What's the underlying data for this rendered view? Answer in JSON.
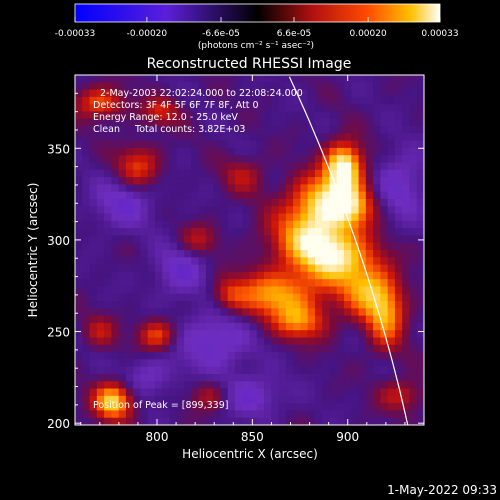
{
  "chart_data": {
    "type": "heatmap",
    "title": "Reconstructed RHESSI Image",
    "xlabel": "Heliocentric X (arcsec)",
    "ylabel": "Heliocentric Y (arcsec)",
    "xlim": [
      757,
      940
    ],
    "ylim": [
      199,
      390
    ],
    "xticks": [
      "800",
      "850",
      "900"
    ],
    "xtick_values": [
      800,
      850,
      900
    ],
    "yticks": [
      "200",
      "250",
      "300",
      "350"
    ],
    "ytick_values": [
      200,
      250,
      300,
      350
    ],
    "colorbar": {
      "min": -0.00033,
      "max": 0.00033,
      "ticks": [
        "-0.00033",
        "-0.00020",
        "-6.6e-05",
        "6.6e-05",
        "0.00020",
        "0.00033"
      ],
      "tick_values": [
        -0.00033,
        -0.0002,
        -6.6e-05,
        6.6e-05,
        0.0002,
        0.00033
      ],
      "unit": "(photons cm⁻² s⁻¹ asec⁻²)"
    },
    "annotations": {
      "time_range": "2-May-2003 22:02:24.000 to 22:08:24.000",
      "detectors": "Detectors: 3F 4F 5F 6F 7F 8F, Att 0",
      "energy": "Energy Range: 12.0 - 25.0 keV",
      "method": "Clean     Total counts: 3.82E+03",
      "peak": "Position of Peak = [899,339]"
    },
    "peak": [
      899,
      339
    ],
    "sources": [
      {
        "x": 898,
        "y": 340,
        "sx": 7,
        "sy": 9,
        "a": 1.0
      },
      {
        "x": 888,
        "y": 322,
        "sx": 12,
        "sy": 10,
        "a": 0.7
      },
      {
        "x": 880,
        "y": 302,
        "sx": 14,
        "sy": 12,
        "a": 0.72
      },
      {
        "x": 895,
        "y": 290,
        "sx": 14,
        "sy": 10,
        "a": 0.72
      },
      {
        "x": 862,
        "y": 270,
        "sx": 16,
        "sy": 9,
        "a": 0.68
      },
      {
        "x": 910,
        "y": 272,
        "sx": 10,
        "sy": 10,
        "a": 0.6
      },
      {
        "x": 920,
        "y": 258,
        "sx": 7,
        "sy": 12,
        "a": 0.62
      },
      {
        "x": 875,
        "y": 255,
        "sx": 10,
        "sy": 7,
        "a": 0.55
      },
      {
        "x": 903,
        "y": 318,
        "sx": 8,
        "sy": 8,
        "a": 0.55
      },
      {
        "x": 777,
        "y": 212,
        "sx": 7,
        "sy": 7,
        "a": 0.85
      },
      {
        "x": 800,
        "y": 248,
        "sx": 7,
        "sy": 6,
        "a": 0.5
      },
      {
        "x": 790,
        "y": 340,
        "sx": 8,
        "sy": 8,
        "a": 0.45
      },
      {
        "x": 770,
        "y": 375,
        "sx": 9,
        "sy": 6,
        "a": 0.5
      },
      {
        "x": 802,
        "y": 370,
        "sx": 7,
        "sy": 5,
        "a": 0.38
      },
      {
        "x": 822,
        "y": 300,
        "sx": 7,
        "sy": 6,
        "a": 0.3
      },
      {
        "x": 845,
        "y": 335,
        "sx": 8,
        "sy": 7,
        "a": 0.28
      },
      {
        "x": 838,
        "y": 270,
        "sx": 6,
        "sy": 6,
        "a": 0.28
      },
      {
        "x": 770,
        "y": 250,
        "sx": 6,
        "sy": 6,
        "a": 0.3
      },
      {
        "x": 828,
        "y": 215,
        "sx": 7,
        "sy": 6,
        "a": 0.3
      },
      {
        "x": 928,
        "y": 215,
        "sx": 8,
        "sy": 6,
        "a": 0.35
      },
      {
        "x": 782,
        "y": 320,
        "sx": 12,
        "sy": 10,
        "a": -0.3
      },
      {
        "x": 830,
        "y": 245,
        "sx": 14,
        "sy": 12,
        "a": -0.35
      },
      {
        "x": 812,
        "y": 283,
        "sx": 10,
        "sy": 10,
        "a": -0.3
      },
      {
        "x": 850,
        "y": 215,
        "sx": 12,
        "sy": 8,
        "a": -0.3
      },
      {
        "x": 928,
        "y": 330,
        "sx": 10,
        "sy": 14,
        "a": -0.3
      },
      {
        "x": 795,
        "y": 225,
        "sx": 10,
        "sy": 8,
        "a": -0.25
      }
    ],
    "limb_arc": {
      "center": [
        0,
        0
      ],
      "radius": 952.5
    }
  },
  "footer": {
    "date": "1-May-2022 09:33"
  }
}
